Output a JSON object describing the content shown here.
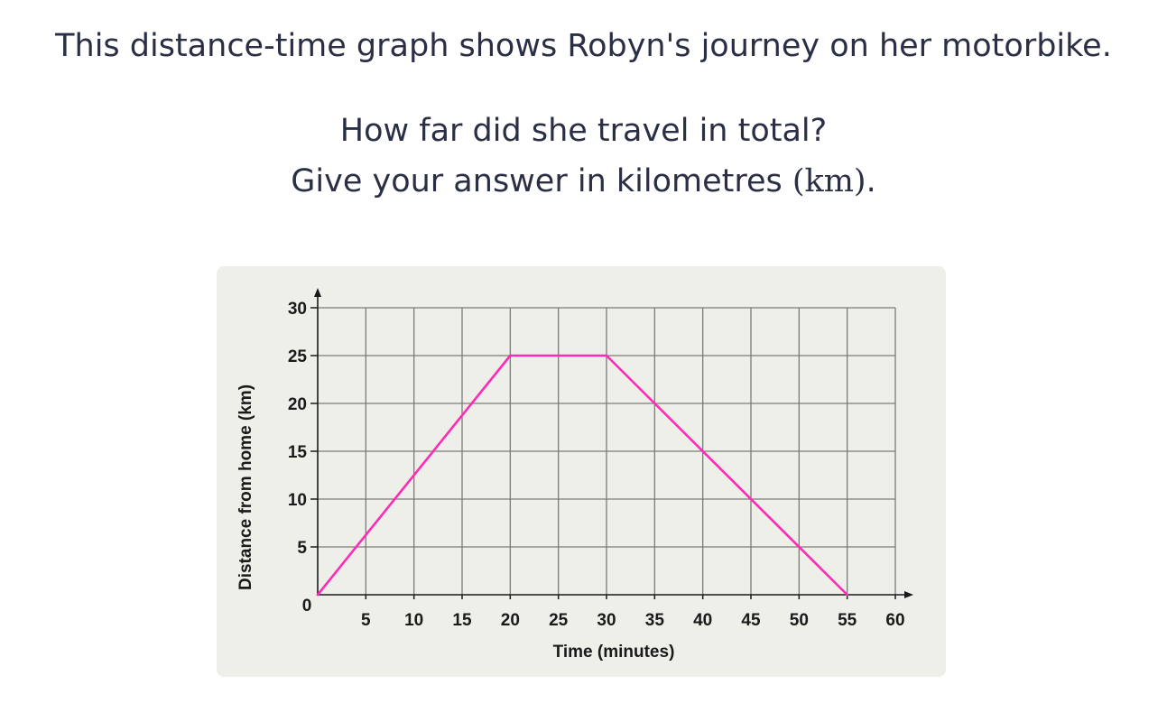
{
  "question": {
    "line1": "This distance-time graph shows Robyn's journey on her motorbike.",
    "line2": "How far did she travel in total?",
    "line3_prefix": "Give your answer in kilometres ",
    "line3_unit": "(km)",
    "line3_suffix": "."
  },
  "colors": {
    "line": "#ff2ab5",
    "grid": "#7a7a7a",
    "axis": "#1a1a1a",
    "card_background": "#efefe9"
  },
  "chart_data": {
    "type": "line",
    "title": "",
    "xlabel": "Time (minutes)",
    "ylabel": "Distance from home (km)",
    "xlim": [
      0,
      60
    ],
    "ylim": [
      0,
      30
    ],
    "x_ticks": [
      5,
      10,
      15,
      20,
      25,
      30,
      35,
      40,
      45,
      50,
      55,
      60
    ],
    "y_ticks": [
      5,
      10,
      15,
      20,
      25,
      30
    ],
    "origin_label": "0",
    "grid": true,
    "series": [
      {
        "points": [
          {
            "x": 0,
            "y": 0
          },
          {
            "x": 20,
            "y": 25
          },
          {
            "x": 30,
            "y": 25
          },
          {
            "x": 55,
            "y": 0
          }
        ]
      }
    ]
  }
}
